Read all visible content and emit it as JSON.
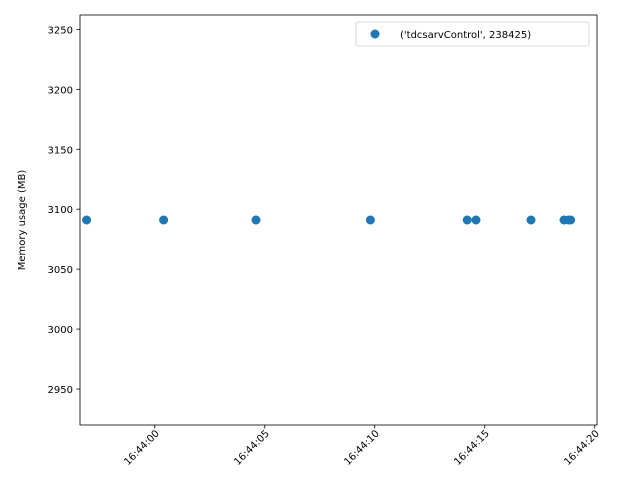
{
  "chart_data": {
    "type": "scatter",
    "title": "",
    "xlabel": "",
    "ylabel": "Memory usage (MB)",
    "x_ticks": [
      "16:44:00",
      "16:44:05",
      "16:44:10",
      "16:44:15",
      "16:44:20"
    ],
    "y_ticks": [
      2950,
      3000,
      3050,
      3100,
      3150,
      3200,
      3250
    ],
    "xlim": [
      "16:43:56.6",
      "16:44:20.1"
    ],
    "ylim": [
      2920,
      3262
    ],
    "grid": false,
    "legend_position": "upper right",
    "series": [
      {
        "name": "('tdcsarvControl', 238425)",
        "color": "#1f77b4",
        "points": [
          {
            "x": "16:43:56.9",
            "y": 3091
          },
          {
            "x": "16:44:00.4",
            "y": 3091
          },
          {
            "x": "16:44:04.6",
            "y": 3091
          },
          {
            "x": "16:44:09.8",
            "y": 3091
          },
          {
            "x": "16:44:14.2",
            "y": 3091
          },
          {
            "x": "16:44:14.6",
            "y": 3091
          },
          {
            "x": "16:44:17.1",
            "y": 3091
          },
          {
            "x": "16:44:18.6",
            "y": 3091
          },
          {
            "x": "16:44:18.8",
            "y": 3091
          },
          {
            "x": "16:44:18.9",
            "y": 3091
          }
        ]
      }
    ]
  }
}
